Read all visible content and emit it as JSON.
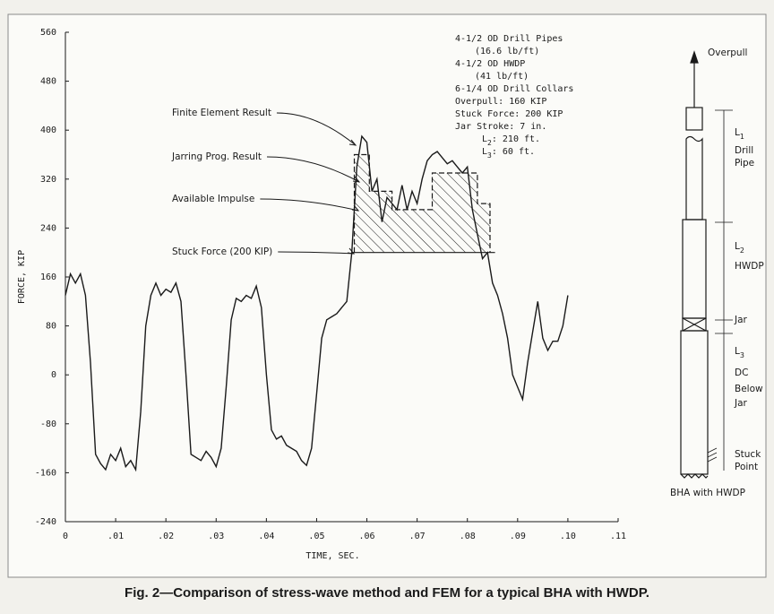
{
  "chart_data": {
    "type": "line",
    "xlabel": "TIME, SEC.",
    "ylabel": "FORCE, KIP",
    "xlim": [
      0,
      0.11
    ],
    "xticks": [
      0,
      {
        "value": 0.01,
        "label": ".01"
      },
      {
        "value": 0.02,
        "label": ".02"
      },
      {
        "value": 0.03,
        "label": ".03"
      },
      {
        "value": 0.04,
        "label": ".04"
      },
      {
        "value": 0.05,
        "label": ".05"
      },
      {
        "value": 0.06,
        "label": ".06"
      },
      {
        "value": 0.07,
        "label": ".07"
      },
      {
        "value": 0.08,
        "label": ".08"
      },
      {
        "value": 0.09,
        "label": ".09"
      },
      {
        "value": 0.1,
        "label": ".10"
      },
      {
        "value": 0.11,
        "label": ".11"
      }
    ],
    "ylim": [
      -240,
      560
    ],
    "yticks": [
      560,
      480,
      400,
      320,
      240,
      160,
      80,
      0,
      -80,
      -160,
      -240
    ],
    "series": [
      {
        "name": "Finite Element Result",
        "color": "#1a1a1a",
        "x": [
          0,
          0.001,
          0.002,
          0.003,
          0.004,
          0.005,
          0.006,
          0.007,
          0.008,
          0.009,
          0.01,
          0.011,
          0.012,
          0.013,
          0.014,
          0.015,
          0.016,
          0.017,
          0.018,
          0.019,
          0.02,
          0.021,
          0.022,
          0.023,
          0.024,
          0.025,
          0.026,
          0.027,
          0.028,
          0.029,
          0.03,
          0.031,
          0.032,
          0.033,
          0.034,
          0.035,
          0.036,
          0.037,
          0.038,
          0.039,
          0.04,
          0.041,
          0.042,
          0.043,
          0.044,
          0.045,
          0.046,
          0.047,
          0.048,
          0.049,
          0.05,
          0.051,
          0.052,
          0.053,
          0.054,
          0.055,
          0.056,
          0.057,
          0.058,
          0.059,
          0.06,
          0.061,
          0.062,
          0.063,
          0.064,
          0.065,
          0.066,
          0.067,
          0.068,
          0.069,
          0.07,
          0.071,
          0.072,
          0.073,
          0.074,
          0.075,
          0.076,
          0.077,
          0.078,
          0.079,
          0.08,
          0.081,
          0.082,
          0.083,
          0.084,
          0.085,
          0.086,
          0.087,
          0.088,
          0.089,
          0.09,
          0.091,
          0.092,
          0.093,
          0.094,
          0.095,
          0.096,
          0.097,
          0.098,
          0.099,
          0.1
        ],
        "values": [
          130,
          165,
          150,
          165,
          130,
          20,
          -130,
          -145,
          -155,
          -130,
          -140,
          -120,
          -150,
          -140,
          -155,
          -60,
          80,
          130,
          150,
          130,
          140,
          135,
          150,
          120,
          0,
          -130,
          -135,
          -140,
          -125,
          -135,
          -150,
          -120,
          -20,
          90,
          125,
          120,
          130,
          125,
          145,
          110,
          0,
          -90,
          -105,
          -100,
          -115,
          -120,
          -125,
          -140,
          -148,
          -120,
          -30,
          60,
          90,
          95,
          100,
          110,
          120,
          200,
          340,
          390,
          380,
          300,
          320,
          250,
          290,
          280,
          270,
          310,
          270,
          300,
          280,
          320,
          350,
          360,
          365,
          355,
          345,
          350,
          340,
          330,
          340,
          270,
          230,
          190,
          200,
          150,
          130,
          100,
          60,
          0,
          -20,
          -40,
          20,
          70,
          120,
          60,
          40,
          55,
          55,
          80,
          130
        ]
      },
      {
        "name": "Jarring Prog. Result",
        "color": "#1a1a1a",
        "dashed": true,
        "x": [
          0.0575,
          0.0575,
          0.0605,
          0.0605,
          0.065,
          0.065,
          0.073,
          0.073,
          0.082,
          0.082,
          0.0845,
          0.0845
        ],
        "values": [
          200,
          360,
          360,
          300,
          300,
          270,
          270,
          330,
          330,
          280,
          280,
          200
        ]
      },
      {
        "name": "Stuck Force (200 KIP)",
        "color": "#1a1a1a",
        "x": [
          0.057,
          0.0855
        ],
        "values": [
          200,
          200
        ]
      }
    ],
    "area_label": "Available Impulse",
    "info": [
      "4-1/2 OD Drill Pipes",
      "(16.6 lb/ft)",
      "4-1/2 OD HWDP",
      "(41 lb/ft)",
      "6-1/4 OD Drill Collars",
      "Overpull: 160 KIP",
      "Stuck Force: 200 KIP",
      "Jar Stroke: 7 in."
    ],
    "info_sub": [
      {
        "main": "L",
        "sub": "2",
        "rest": ":  210 ft."
      },
      {
        "main": "L",
        "sub": "3",
        "rest": ":  60 ft."
      }
    ]
  },
  "diagram": {
    "overpull": "Overpull",
    "l1": {
      "main": "L",
      "sub": "1"
    },
    "l1_text": [
      "Drill",
      "Pipe"
    ],
    "l2": {
      "main": "L",
      "sub": "2"
    },
    "l2_text": [
      "HWDP"
    ],
    "jar": "Jar",
    "l3": {
      "main": "L",
      "sub": "3"
    },
    "l3_text": [
      "DC",
      "Below",
      "Jar"
    ],
    "stuck": [
      "Stuck",
      "Point"
    ],
    "caption": "BHA with HWDP"
  },
  "caption": "Fig. 2—Comparison of stress-wave method and FEM for a typical BHA with HWDP."
}
